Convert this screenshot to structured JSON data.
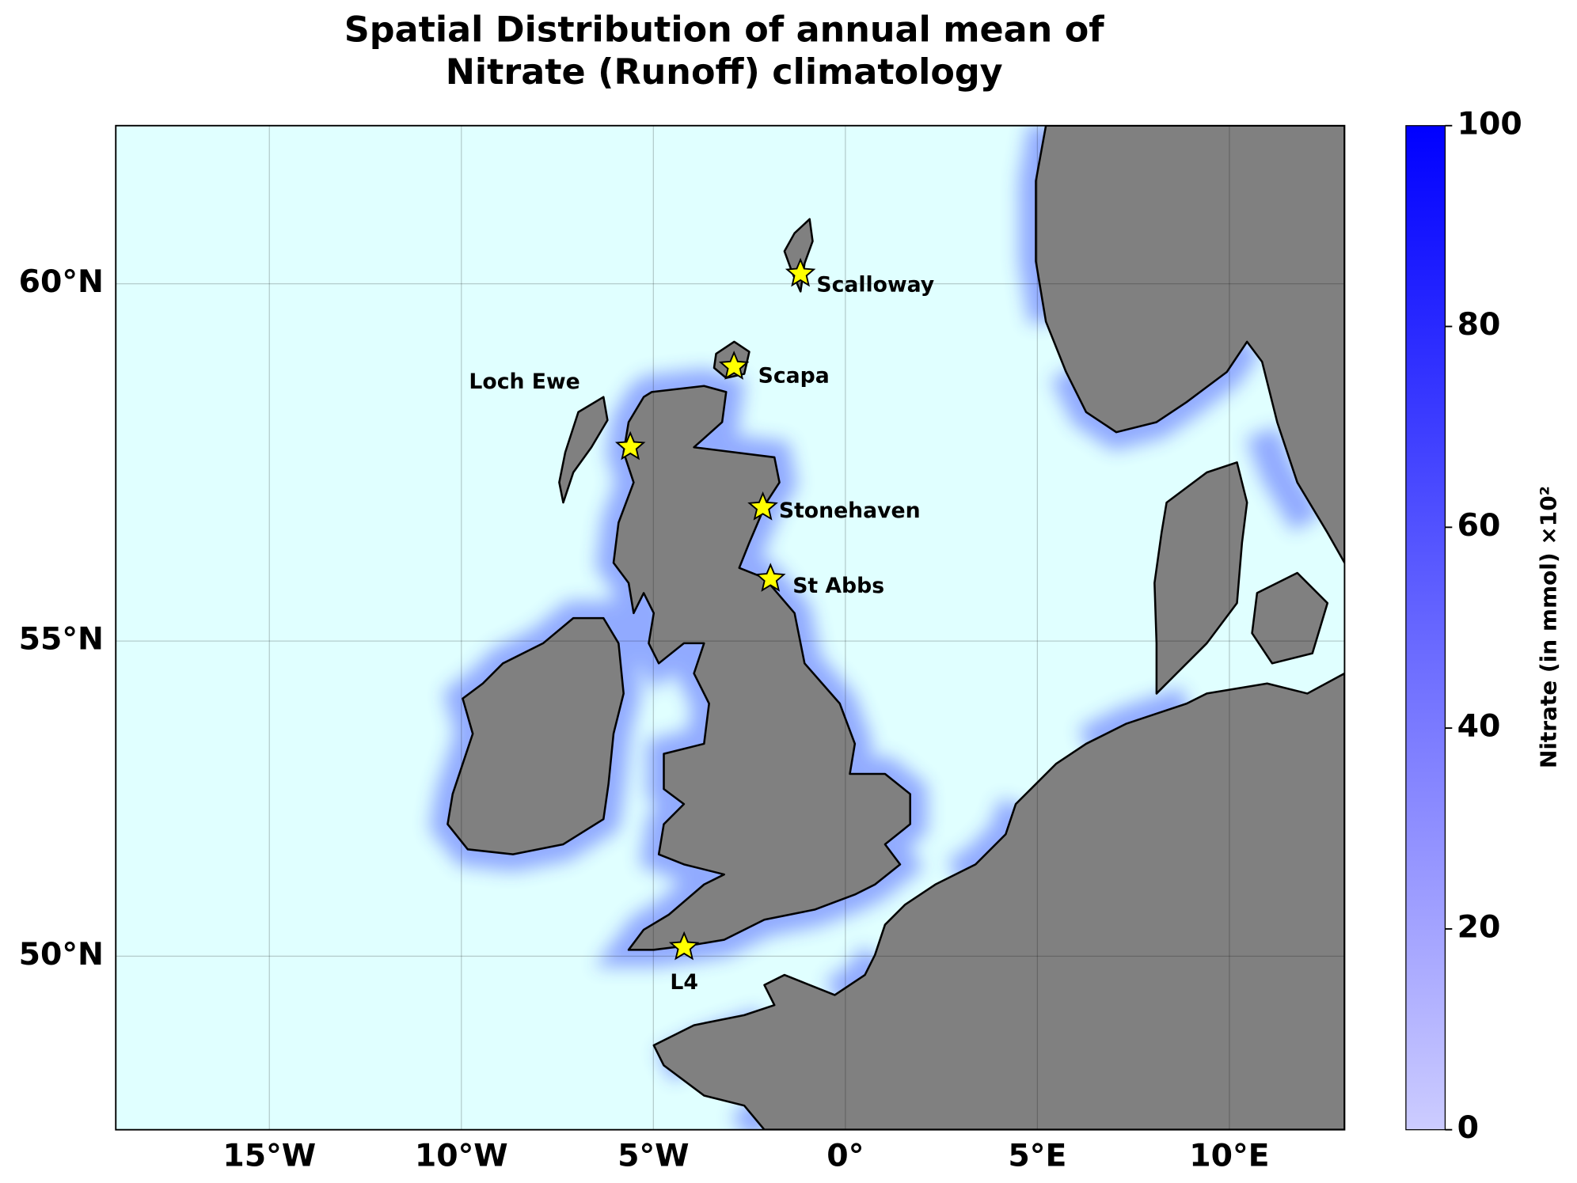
{
  "chart_data": {
    "type": "map",
    "title": [
      "Spatial Distribution of annual mean of",
      "Nitrate (Runoff) climatology"
    ],
    "xlim": [
      -19,
      13
    ],
    "xticks": [
      {
        "value": -15,
        "label": "15°W"
      },
      {
        "value": -10,
        "label": "10°W"
      },
      {
        "value": -5,
        "label": "5°W"
      },
      {
        "value": 0,
        "label": "0°"
      },
      {
        "value": 5,
        "label": "5°E"
      },
      {
        "value": 10,
        "label": "10°E"
      }
    ],
    "ylim": [
      47,
      62
    ],
    "yticks": [
      {
        "value": 50,
        "label": "50°N"
      },
      {
        "value": 55,
        "label": "55°N"
      },
      {
        "value": 60,
        "label": "60°N"
      }
    ],
    "grid": true,
    "ocean_color": "#e0ffff",
    "land_color": "#808080",
    "stations": {
      "color": "#ffff00",
      "names": [
        "Scalloway",
        "Scapa",
        "Loch Ewe",
        "Stonehaven",
        "St Abbs",
        "L4"
      ],
      "lon": [
        -1.17,
        -2.9,
        -5.6,
        -2.15,
        -1.95,
        -4.2
      ],
      "lat": [
        60.13,
        58.9,
        57.8,
        56.95,
        55.92,
        50.15
      ]
    },
    "colorbar": {
      "label": "Nitrate (in mmol) ×10²",
      "lim": [
        0,
        100
      ],
      "ticks": [
        0,
        20,
        40,
        60,
        80,
        100
      ],
      "colors": [
        "#ccccff",
        "#0000ff"
      ]
    }
  }
}
